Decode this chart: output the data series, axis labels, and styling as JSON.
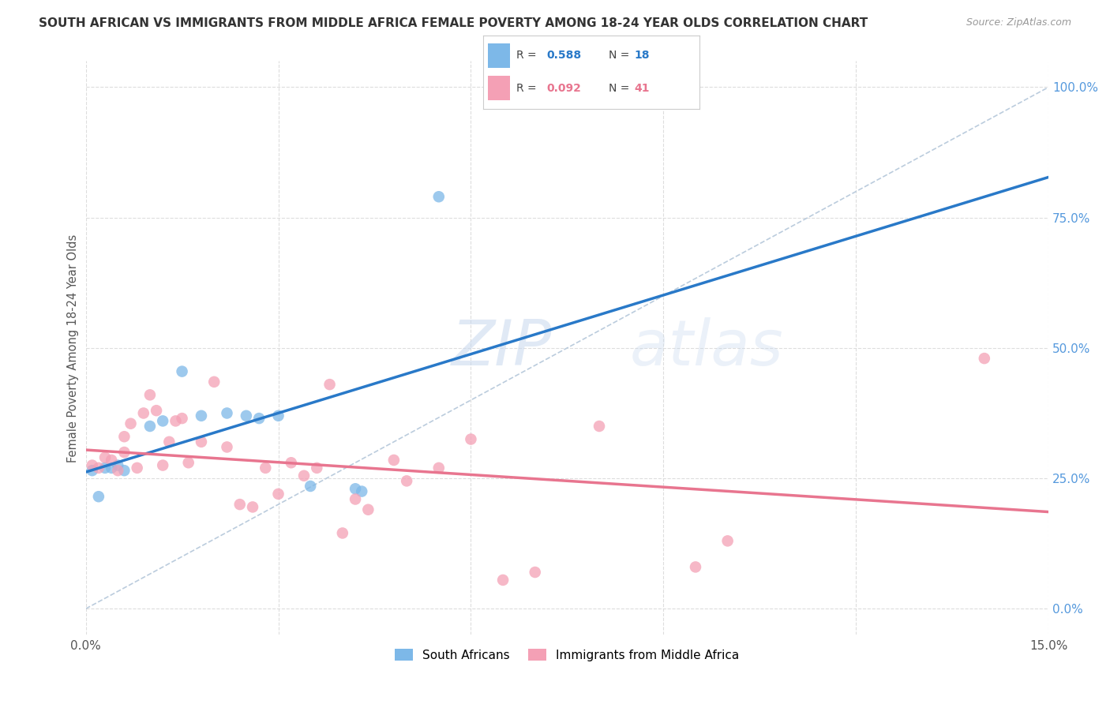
{
  "title": "SOUTH AFRICAN VS IMMIGRANTS FROM MIDDLE AFRICA FEMALE POVERTY AMONG 18-24 YEAR OLDS CORRELATION CHART",
  "source": "Source: ZipAtlas.com",
  "ylabel": "Female Poverty Among 18-24 Year Olds",
  "xlim": [
    0.0,
    0.15
  ],
  "ylim": [
    -0.05,
    1.05
  ],
  "yticks_right": [
    0.0,
    0.25,
    0.5,
    0.75,
    1.0
  ],
  "ytick_labels_right": [
    "0.0%",
    "25.0%",
    "50.0%",
    "75.0%",
    "100.0%"
  ],
  "blue_color": "#7DB8E8",
  "pink_color": "#F4A0B5",
  "blue_line_color": "#2979C8",
  "pink_line_color": "#E8758F",
  "ref_line_color": "#BBCCDD",
  "background_color": "#FFFFFF",
  "grid_color": "#DDDDDD",
  "title_color": "#333333",
  "axis_label_color": "#555555",
  "right_axis_color": "#5599DD",
  "watermark_zip": "ZIP",
  "watermark_atlas": "atlas",
  "legend_blue_R": "0.588",
  "legend_blue_N": "18",
  "legend_pink_R": "0.092",
  "legend_pink_N": "41"
}
